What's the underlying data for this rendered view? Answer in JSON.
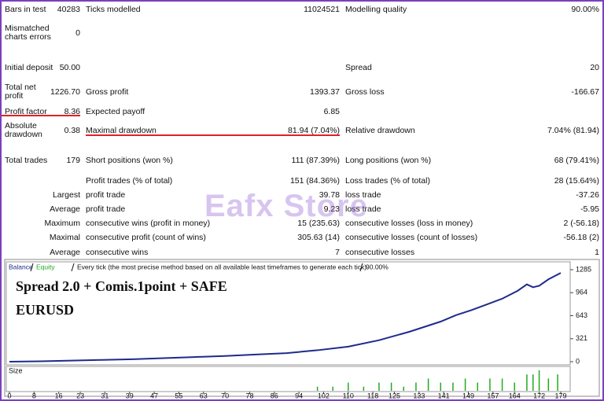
{
  "report": {
    "rows": [
      {
        "label": "Bars in test",
        "value": "40283",
        "label2": "Ticks modelled",
        "value2": "11024521",
        "label3": "Modelling quality",
        "value3": "90.00%"
      },
      {
        "label": "Mismatched charts errors",
        "value": "0"
      },
      {
        "label": "Initial deposit",
        "value": "50.00",
        "label3": "Spread",
        "value3": "20"
      },
      {
        "label": "Total net profit",
        "value": "1226.70",
        "label2": "Gross profit",
        "value2": "1393.37",
        "label3": "Gross loss",
        "value3": "-166.67"
      },
      {
        "label": "Profit factor",
        "value": "8.36",
        "label2": "Expected payoff",
        "value2": "6.85"
      },
      {
        "label": "Absolute drawdown",
        "value": "0.38",
        "label2": "Maximal drawdown",
        "value2": "81.94 (7.04%)",
        "label3": "Relative drawdown",
        "value3": "7.04% (81.94)"
      },
      {
        "label": "Total trades",
        "value": "179",
        "label2": "Short positions (won %)",
        "value2": "111 (87.39%)",
        "label3": "Long positions (won %)",
        "value3": "68 (79.41%)"
      },
      {
        "label2": "Profit trades (% of total)",
        "value2": "151 (84.36%)",
        "label3": "Loss trades (% of total)",
        "value3": "28 (15.64%)"
      },
      {
        "label": "Largest",
        "label2": "profit trade",
        "value2": "39.78",
        "label3": "loss trade",
        "value3": "-37.26"
      },
      {
        "label": "Average",
        "label2": "profit trade",
        "value2": "9.23",
        "label3": "loss trade",
        "value3": "-5.95"
      },
      {
        "label": "Maximum",
        "label2": "consecutive wins (profit in money)",
        "value2": "15 (235.63)",
        "label3": "consecutive losses (loss in money)",
        "value3": "2 (-56.18)"
      },
      {
        "label": "Maximal",
        "label2": "consecutive profit (count of wins)",
        "value2": "305.63 (14)",
        "label3": "consecutive losses (count of losses)",
        "value3": "-56.18 (2)"
      },
      {
        "label": "Average",
        "label2": "consecutive wins",
        "value2": "7",
        "label3": "consecutive losses",
        "value3": "1"
      }
    ],
    "watermark": "Eafx Store"
  },
  "chart_data": {
    "type": "line",
    "header": [
      "Balance",
      "Equity",
      "Every tick (the most precise method based on all available least timeframes to generate each tick)",
      "90.00%"
    ],
    "annotations": [
      "Spread 2.0 + Comis.1point + SAFE",
      "EURUSD"
    ],
    "size_label": "Size",
    "x": [
      0,
      10,
      20,
      30,
      40,
      50,
      60,
      70,
      80,
      90,
      100,
      110,
      120,
      130,
      140,
      145,
      150,
      155,
      160,
      165,
      168,
      170,
      172,
      175,
      179
    ],
    "series": [
      {
        "name": "Balance",
        "color": "#1f2a8c",
        "values": [
          0,
          5,
          15,
          25,
          35,
          50,
          65,
          80,
          100,
          120,
          160,
          210,
          300,
          420,
          560,
          650,
          720,
          800,
          880,
          990,
          1080,
          1040,
          1060,
          1150,
          1240
        ]
      }
    ],
    "xlim": [
      0,
      179
    ],
    "ylim": [
      0,
      1285
    ],
    "yticks": [
      0,
      321,
      643,
      964,
      1285
    ],
    "xticks": [
      0,
      8,
      16,
      23,
      31,
      39,
      47,
      55,
      63,
      70,
      78,
      86,
      94,
      102,
      110,
      118,
      125,
      133,
      141,
      149,
      157,
      164,
      172,
      179
    ],
    "size_x": [
      100,
      105,
      110,
      115,
      120,
      124,
      128,
      132,
      136,
      140,
      144,
      148,
      152,
      156,
      160,
      164,
      168,
      170,
      172,
      175,
      178
    ],
    "size_values": [
      1,
      1,
      2,
      1,
      2,
      2,
      1,
      2,
      3,
      2,
      2,
      3,
      2,
      3,
      3,
      2,
      4,
      4,
      5,
      3,
      4
    ],
    "size_color": "#22aa22"
  }
}
